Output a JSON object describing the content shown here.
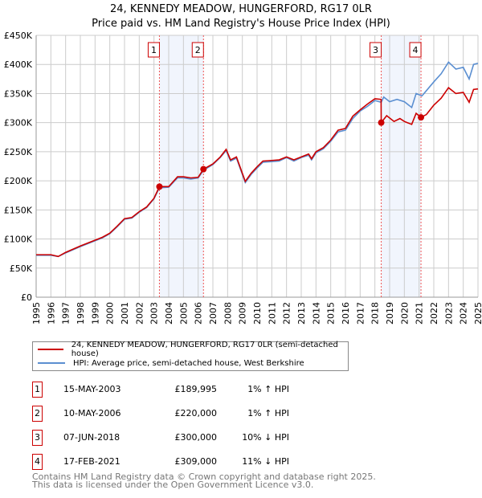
{
  "chart_data": {
    "type": "line",
    "title": "24, KENNEDY MEADOW, HUNGERFORD, RG17 0LR",
    "subtitle": "Price paid vs. HM Land Registry's House Price Index (HPI)",
    "xlim": [
      1995,
      2025
    ],
    "ylim": [
      0,
      450000
    ],
    "x_ticks": [
      "1995",
      "1996",
      "1997",
      "1998",
      "1999",
      "2000",
      "2001",
      "2002",
      "2003",
      "2004",
      "2005",
      "2006",
      "2007",
      "2008",
      "2009",
      "2010",
      "2011",
      "2012",
      "2013",
      "2014",
      "2015",
      "2016",
      "2017",
      "2018",
      "2019",
      "2020",
      "2021",
      "2022",
      "2023",
      "2024",
      "2025"
    ],
    "y_ticks": [
      {
        "v": 0,
        "label": "£0"
      },
      {
        "v": 50000,
        "label": "£50K"
      },
      {
        "v": 100000,
        "label": "£100K"
      },
      {
        "v": 150000,
        "label": "£150K"
      },
      {
        "v": 200000,
        "label": "£200K"
      },
      {
        "v": 250000,
        "label": "£250K"
      },
      {
        "v": 300000,
        "label": "£300K"
      },
      {
        "v": 350000,
        "label": "£350K"
      },
      {
        "v": 400000,
        "label": "£400K"
      },
      {
        "v": 450000,
        "label": "£450K"
      }
    ],
    "grid": true,
    "series": [
      {
        "name": "24, KENNEDY MEADOW, HUNGERFORD, RG17 0LR (semi-detached house)",
        "color": "#cc0000",
        "x": [
          1995,
          1996,
          1996.5,
          1997,
          1998,
          1998.5,
          1999,
          1999.5,
          2000,
          2000.5,
          2001,
          2001.5,
          2002,
          2002.5,
          2003,
          2003.37,
          2004,
          2004.6,
          2005,
          2005.5,
          2006,
          2006.36,
          2007,
          2007.5,
          2007.9,
          2008.2,
          2008.6,
          2009.2,
          2009.6,
          2010,
          2010.4,
          2011,
          2011.5,
          2012,
          2012.5,
          2013,
          2013.5,
          2013.7,
          2014,
          2014.5,
          2015,
          2015.5,
          2016,
          2016.5,
          2017,
          2017.5,
          2018,
          2018.42,
          2018.43,
          2018.8,
          2019.3,
          2019.7,
          2020,
          2020.5,
          2020.8,
          2021.13,
          2021.5,
          2022,
          2022.5,
          2023,
          2023.5,
          2024,
          2024.4,
          2024.7,
          2025
        ],
        "y": [
          73000,
          73000,
          70000,
          77000,
          88000,
          93000,
          98000,
          103000,
          110000,
          122000,
          135000,
          137000,
          147000,
          155000,
          170000,
          189995,
          190000,
          207000,
          207000,
          205000,
          206000,
          220000,
          229000,
          241000,
          254000,
          236000,
          241000,
          199000,
          213000,
          224000,
          234000,
          235000,
          236000,
          241000,
          236000,
          241000,
          246000,
          238000,
          250000,
          257000,
          270000,
          287000,
          290000,
          311000,
          322000,
          332000,
          341000,
          340000,
          300000,
          312000,
          302000,
          307000,
          302000,
          297000,
          316000,
          309000,
          314000,
          330000,
          342000,
          360000,
          350000,
          352000,
          335000,
          357000,
          358000
        ]
      },
      {
        "name": "HPI: Average price, semi-detached house, West Berkshire",
        "color": "#5b8fd1",
        "x": [
          1995,
          1996,
          1996.5,
          1997,
          1998,
          1998.5,
          1999,
          1999.5,
          2000,
          2000.5,
          2001,
          2001.5,
          2002,
          2002.5,
          2003,
          2003.37,
          2004,
          2004.6,
          2005,
          2005.5,
          2006,
          2006.36,
          2007,
          2007.5,
          2007.9,
          2008.2,
          2008.6,
          2009.2,
          2009.6,
          2010,
          2010.4,
          2011,
          2011.5,
          2012,
          2012.5,
          2013,
          2013.5,
          2013.7,
          2014,
          2014.5,
          2015,
          2015.5,
          2016,
          2016.5,
          2017,
          2017.5,
          2018,
          2018.43,
          2018.6,
          2019,
          2019.5,
          2020,
          2020.5,
          2020.8,
          2021.2,
          2021.5,
          2022,
          2022.5,
          2023,
          2023.5,
          2024,
          2024.4,
          2024.7,
          2025
        ],
        "y": [
          72000,
          72000,
          70000,
          76000,
          87000,
          92000,
          97000,
          102000,
          109000,
          121000,
          134000,
          136000,
          146000,
          154000,
          169000,
          188000,
          189000,
          205000,
          205000,
          203000,
          205000,
          218000,
          228000,
          240000,
          252000,
          234000,
          239000,
          197000,
          211000,
          222000,
          232000,
          233000,
          234000,
          240000,
          234000,
          240000,
          244000,
          236000,
          248000,
          255000,
          268000,
          284000,
          287000,
          307000,
          320000,
          328000,
          338000,
          335000,
          344000,
          336000,
          340000,
          336000,
          326000,
          350000,
          346000,
          355000,
          370000,
          384000,
          404000,
          392000,
          395000,
          375000,
          400000,
          402000
        ]
      }
    ],
    "sales": [
      {
        "label": "1",
        "x": 2003.37,
        "y": 189995
      },
      {
        "label": "2",
        "x": 2006.36,
        "y": 220000
      },
      {
        "label": "3",
        "x": 2018.43,
        "y": 300000
      },
      {
        "label": "4",
        "x": 2021.13,
        "y": 309000
      }
    ],
    "shaded_ranges": [
      [
        2003.37,
        2006.36
      ],
      [
        2018.43,
        2021.13
      ]
    ]
  },
  "legend": {
    "red": "24, KENNEDY MEADOW, HUNGERFORD, RG17 0LR (semi-detached house)",
    "blue": "HPI: Average price, semi-detached house, West Berkshire"
  },
  "transactions": [
    {
      "num": "1",
      "date": "15-MAY-2003",
      "price": "£189,995",
      "hpi": "1% ↑ HPI"
    },
    {
      "num": "2",
      "date": "10-MAY-2006",
      "price": "£220,000",
      "hpi": "1% ↑ HPI"
    },
    {
      "num": "3",
      "date": "07-JUN-2018",
      "price": "£300,000",
      "hpi": "10% ↓ HPI"
    },
    {
      "num": "4",
      "date": "17-FEB-2021",
      "price": "£309,000",
      "hpi": "11% ↓ HPI"
    }
  ],
  "footer": {
    "line1": "Contains HM Land Registry data © Crown copyright and database right 2025.",
    "line2": "This data is licensed under the Open Government Licence v3.0."
  }
}
